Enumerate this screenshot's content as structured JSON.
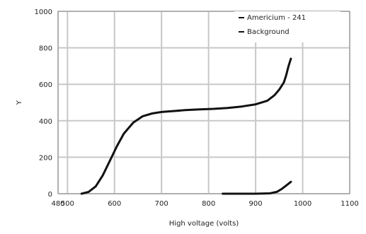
{
  "chart_data": {
    "type": "line",
    "xlabel": "High voltage (volts)",
    "ylabel": "Y",
    "xlim": [
      480,
      1100
    ],
    "ylim": [
      0,
      1000
    ],
    "xticks": [
      480,
      500,
      600,
      700,
      800,
      900,
      1000,
      1100
    ],
    "yticks": [
      0,
      200,
      400,
      600,
      800,
      1000
    ],
    "grid": true,
    "legend_position": "top-right",
    "series": [
      {
        "name": "Americium - 241",
        "color": "#111111",
        "x": [
          530,
          545,
          560,
          575,
          590,
          605,
          620,
          640,
          660,
          680,
          700,
          720,
          750,
          780,
          810,
          840,
          870,
          900,
          925,
          940,
          950,
          960,
          965,
          970,
          975
        ],
        "y": [
          0,
          10,
          40,
          100,
          180,
          260,
          330,
          390,
          425,
          440,
          448,
          452,
          458,
          462,
          465,
          470,
          478,
          490,
          510,
          540,
          570,
          610,
          650,
          700,
          740
        ]
      },
      {
        "name": "Background",
        "color": "#111111",
        "x": [
          830,
          860,
          900,
          930,
          945,
          955,
          965,
          975
        ],
        "y": [
          0,
          0,
          0,
          2,
          10,
          25,
          45,
          65
        ]
      }
    ]
  }
}
